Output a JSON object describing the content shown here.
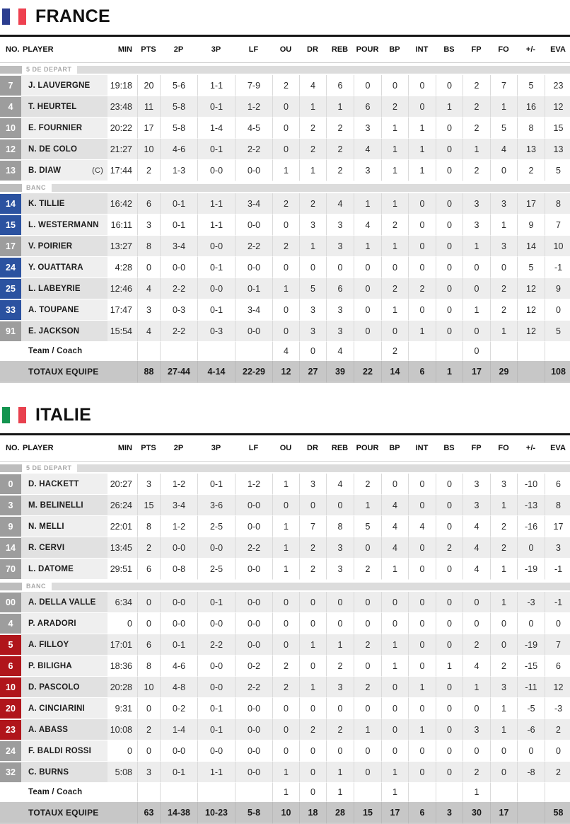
{
  "columns": [
    "NO.",
    "PLAYER",
    "MIN",
    "PTS",
    "2P",
    "3P",
    "LF",
    "OU",
    "DR",
    "REB",
    "POUR",
    "BP",
    "INT",
    "BS",
    "FP",
    "FO",
    "+/-",
    "EVA"
  ],
  "sections": {
    "starters": "5 DE DEPART",
    "bench": "BANC"
  },
  "labels": {
    "team_coach": "Team / Coach",
    "totals": "TOTAUX EQUIPE",
    "captain": "(C)"
  },
  "badge_inactive_color": "#9d9d9d",
  "teams": [
    {
      "name": "FRANCE",
      "accent": "#2b52a0",
      "flag_colors": [
        "#2b3d8f",
        "#ffffff",
        "#ee4150"
      ],
      "starters": [
        {
          "no": "7",
          "active": false,
          "name": "J. LAUVERGNE",
          "captain": false,
          "min": "19:18",
          "pts": "20",
          "p2": "5-6",
          "p3": "1-1",
          "lf": "7-9",
          "ou": "2",
          "dr": "4",
          "reb": "6",
          "pour": "0",
          "bp": "0",
          "int": "0",
          "bs": "0",
          "fp": "2",
          "fo": "7",
          "pm": "5",
          "eva": "23"
        },
        {
          "no": "4",
          "active": false,
          "name": "T. HEURTEL",
          "captain": false,
          "min": "23:48",
          "pts": "11",
          "p2": "5-8",
          "p3": "0-1",
          "lf": "1-2",
          "ou": "0",
          "dr": "1",
          "reb": "1",
          "pour": "6",
          "bp": "2",
          "int": "0",
          "bs": "1",
          "fp": "2",
          "fo": "1",
          "pm": "16",
          "eva": "12"
        },
        {
          "no": "10",
          "active": false,
          "name": "E. FOURNIER",
          "captain": false,
          "min": "20:22",
          "pts": "17",
          "p2": "5-8",
          "p3": "1-4",
          "lf": "4-5",
          "ou": "0",
          "dr": "2",
          "reb": "2",
          "pour": "3",
          "bp": "1",
          "int": "1",
          "bs": "0",
          "fp": "2",
          "fo": "5",
          "pm": "8",
          "eva": "15"
        },
        {
          "no": "12",
          "active": false,
          "name": "N. DE COLO",
          "captain": false,
          "min": "21:27",
          "pts": "10",
          "p2": "4-6",
          "p3": "0-1",
          "lf": "2-2",
          "ou": "0",
          "dr": "2",
          "reb": "2",
          "pour": "4",
          "bp": "1",
          "int": "1",
          "bs": "0",
          "fp": "1",
          "fo": "4",
          "pm": "13",
          "eva": "13"
        },
        {
          "no": "13",
          "active": false,
          "name": "B. DIAW",
          "captain": true,
          "min": "17:44",
          "pts": "2",
          "p2": "1-3",
          "p3": "0-0",
          "lf": "0-0",
          "ou": "1",
          "dr": "1",
          "reb": "2",
          "pour": "3",
          "bp": "1",
          "int": "1",
          "bs": "0",
          "fp": "2",
          "fo": "0",
          "pm": "2",
          "eva": "5"
        }
      ],
      "bench": [
        {
          "no": "14",
          "active": true,
          "name": "K. TILLIE",
          "captain": false,
          "min": "16:42",
          "pts": "6",
          "p2": "0-1",
          "p3": "1-1",
          "lf": "3-4",
          "ou": "2",
          "dr": "2",
          "reb": "4",
          "pour": "1",
          "bp": "1",
          "int": "0",
          "bs": "0",
          "fp": "3",
          "fo": "3",
          "pm": "17",
          "eva": "8"
        },
        {
          "no": "15",
          "active": true,
          "name": "L. WESTERMANN",
          "captain": false,
          "min": "16:11",
          "pts": "3",
          "p2": "0-1",
          "p3": "1-1",
          "lf": "0-0",
          "ou": "0",
          "dr": "3",
          "reb": "3",
          "pour": "4",
          "bp": "2",
          "int": "0",
          "bs": "0",
          "fp": "3",
          "fo": "1",
          "pm": "9",
          "eva": "7"
        },
        {
          "no": "17",
          "active": false,
          "name": "V. POIRIER",
          "captain": false,
          "min": "13:27",
          "pts": "8",
          "p2": "3-4",
          "p3": "0-0",
          "lf": "2-2",
          "ou": "2",
          "dr": "1",
          "reb": "3",
          "pour": "1",
          "bp": "1",
          "int": "0",
          "bs": "0",
          "fp": "1",
          "fo": "3",
          "pm": "14",
          "eva": "10"
        },
        {
          "no": "24",
          "active": true,
          "name": "Y. OUATTARA",
          "captain": false,
          "min": "4:28",
          "pts": "0",
          "p2": "0-0",
          "p3": "0-1",
          "lf": "0-0",
          "ou": "0",
          "dr": "0",
          "reb": "0",
          "pour": "0",
          "bp": "0",
          "int": "0",
          "bs": "0",
          "fp": "0",
          "fo": "0",
          "pm": "5",
          "eva": "-1"
        },
        {
          "no": "25",
          "active": true,
          "name": "L. LABEYRIE",
          "captain": false,
          "min": "12:46",
          "pts": "4",
          "p2": "2-2",
          "p3": "0-0",
          "lf": "0-1",
          "ou": "1",
          "dr": "5",
          "reb": "6",
          "pour": "0",
          "bp": "2",
          "int": "2",
          "bs": "0",
          "fp": "0",
          "fo": "2",
          "pm": "12",
          "eva": "9"
        },
        {
          "no": "33",
          "active": true,
          "name": "A. TOUPANE",
          "captain": false,
          "min": "17:47",
          "pts": "3",
          "p2": "0-3",
          "p3": "0-1",
          "lf": "3-4",
          "ou": "0",
          "dr": "3",
          "reb": "3",
          "pour": "0",
          "bp": "1",
          "int": "0",
          "bs": "0",
          "fp": "1",
          "fo": "2",
          "pm": "12",
          "eva": "0"
        },
        {
          "no": "91",
          "active": false,
          "name": "E. JACKSON",
          "captain": false,
          "min": "15:54",
          "pts": "4",
          "p2": "2-2",
          "p3": "0-3",
          "lf": "0-0",
          "ou": "0",
          "dr": "3",
          "reb": "3",
          "pour": "0",
          "bp": "0",
          "int": "1",
          "bs": "0",
          "fp": "0",
          "fo": "1",
          "pm": "12",
          "eva": "5"
        }
      ],
      "team_coach": {
        "ou": "4",
        "dr": "0",
        "reb": "4",
        "bp": "2",
        "fp": "0"
      },
      "totals": {
        "pts": "88",
        "p2": "27-44",
        "p3": "4-14",
        "lf": "22-29",
        "ou": "12",
        "dr": "27",
        "reb": "39",
        "pour": "22",
        "bp": "14",
        "int": "6",
        "bs": "1",
        "fp": "17",
        "fo": "29",
        "eva": "108"
      }
    },
    {
      "name": "ITALIE",
      "accent": "#b0151b",
      "flag_colors": [
        "#13944f",
        "#ffffff",
        "#e8414e"
      ],
      "starters": [
        {
          "no": "0",
          "active": false,
          "name": "D. HACKETT",
          "captain": false,
          "min": "20:27",
          "pts": "3",
          "p2": "1-2",
          "p3": "0-1",
          "lf": "1-2",
          "ou": "1",
          "dr": "3",
          "reb": "4",
          "pour": "2",
          "bp": "0",
          "int": "0",
          "bs": "0",
          "fp": "3",
          "fo": "3",
          "pm": "-10",
          "eva": "6"
        },
        {
          "no": "3",
          "active": false,
          "name": "M. BELINELLI",
          "captain": false,
          "min": "26:24",
          "pts": "15",
          "p2": "3-4",
          "p3": "3-6",
          "lf": "0-0",
          "ou": "0",
          "dr": "0",
          "reb": "0",
          "pour": "1",
          "bp": "4",
          "int": "0",
          "bs": "0",
          "fp": "3",
          "fo": "1",
          "pm": "-13",
          "eva": "8"
        },
        {
          "no": "9",
          "active": false,
          "name": "N. MELLI",
          "captain": false,
          "min": "22:01",
          "pts": "8",
          "p2": "1-2",
          "p3": "2-5",
          "lf": "0-0",
          "ou": "1",
          "dr": "7",
          "reb": "8",
          "pour": "5",
          "bp": "4",
          "int": "4",
          "bs": "0",
          "fp": "4",
          "fo": "2",
          "pm": "-16",
          "eva": "17"
        },
        {
          "no": "14",
          "active": false,
          "name": "R. CERVI",
          "captain": false,
          "min": "13:45",
          "pts": "2",
          "p2": "0-0",
          "p3": "0-0",
          "lf": "2-2",
          "ou": "1",
          "dr": "2",
          "reb": "3",
          "pour": "0",
          "bp": "4",
          "int": "0",
          "bs": "2",
          "fp": "4",
          "fo": "2",
          "pm": "0",
          "eva": "3"
        },
        {
          "no": "70",
          "active": false,
          "name": "L. DATOME",
          "captain": false,
          "min": "29:51",
          "pts": "6",
          "p2": "0-8",
          "p3": "2-5",
          "lf": "0-0",
          "ou": "1",
          "dr": "2",
          "reb": "3",
          "pour": "2",
          "bp": "1",
          "int": "0",
          "bs": "0",
          "fp": "4",
          "fo": "1",
          "pm": "-19",
          "eva": "-1"
        }
      ],
      "bench": [
        {
          "no": "00",
          "active": false,
          "name": "A. DELLA VALLE",
          "captain": false,
          "min": "6:34",
          "pts": "0",
          "p2": "0-0",
          "p3": "0-1",
          "lf": "0-0",
          "ou": "0",
          "dr": "0",
          "reb": "0",
          "pour": "0",
          "bp": "0",
          "int": "0",
          "bs": "0",
          "fp": "0",
          "fo": "1",
          "pm": "-3",
          "eva": "-1"
        },
        {
          "no": "4",
          "active": false,
          "name": "P. ARADORI",
          "captain": false,
          "min": "0",
          "pts": "0",
          "p2": "0-0",
          "p3": "0-0",
          "lf": "0-0",
          "ou": "0",
          "dr": "0",
          "reb": "0",
          "pour": "0",
          "bp": "0",
          "int": "0",
          "bs": "0",
          "fp": "0",
          "fo": "0",
          "pm": "0",
          "eva": "0"
        },
        {
          "no": "5",
          "active": true,
          "name": "A. FILLOY",
          "captain": false,
          "min": "17:01",
          "pts": "6",
          "p2": "0-1",
          "p3": "2-2",
          "lf": "0-0",
          "ou": "0",
          "dr": "1",
          "reb": "1",
          "pour": "2",
          "bp": "1",
          "int": "0",
          "bs": "0",
          "fp": "2",
          "fo": "0",
          "pm": "-19",
          "eva": "7"
        },
        {
          "no": "6",
          "active": true,
          "name": "P. BILIGHA",
          "captain": false,
          "min": "18:36",
          "pts": "8",
          "p2": "4-6",
          "p3": "0-0",
          "lf": "0-2",
          "ou": "2",
          "dr": "0",
          "reb": "2",
          "pour": "0",
          "bp": "1",
          "int": "0",
          "bs": "1",
          "fp": "4",
          "fo": "2",
          "pm": "-15",
          "eva": "6"
        },
        {
          "no": "10",
          "active": true,
          "name": "D. PASCOLO",
          "captain": false,
          "min": "20:28",
          "pts": "10",
          "p2": "4-8",
          "p3": "0-0",
          "lf": "2-2",
          "ou": "2",
          "dr": "1",
          "reb": "3",
          "pour": "2",
          "bp": "0",
          "int": "1",
          "bs": "0",
          "fp": "1",
          "fo": "3",
          "pm": "-11",
          "eva": "12"
        },
        {
          "no": "20",
          "active": true,
          "name": "A. CINCIARINI",
          "captain": false,
          "min": "9:31",
          "pts": "0",
          "p2": "0-2",
          "p3": "0-1",
          "lf": "0-0",
          "ou": "0",
          "dr": "0",
          "reb": "0",
          "pour": "0",
          "bp": "0",
          "int": "0",
          "bs": "0",
          "fp": "0",
          "fo": "1",
          "pm": "-5",
          "eva": "-3"
        },
        {
          "no": "23",
          "active": true,
          "name": "A. ABASS",
          "captain": false,
          "min": "10:08",
          "pts": "2",
          "p2": "1-4",
          "p3": "0-1",
          "lf": "0-0",
          "ou": "0",
          "dr": "2",
          "reb": "2",
          "pour": "1",
          "bp": "0",
          "int": "1",
          "bs": "0",
          "fp": "3",
          "fo": "1",
          "pm": "-6",
          "eva": "2"
        },
        {
          "no": "24",
          "active": false,
          "name": "F. BALDI ROSSI",
          "captain": false,
          "min": "0",
          "pts": "0",
          "p2": "0-0",
          "p3": "0-0",
          "lf": "0-0",
          "ou": "0",
          "dr": "0",
          "reb": "0",
          "pour": "0",
          "bp": "0",
          "int": "0",
          "bs": "0",
          "fp": "0",
          "fo": "0",
          "pm": "0",
          "eva": "0"
        },
        {
          "no": "32",
          "active": false,
          "name": "C. BURNS",
          "captain": false,
          "min": "5:08",
          "pts": "3",
          "p2": "0-1",
          "p3": "1-1",
          "lf": "0-0",
          "ou": "1",
          "dr": "0",
          "reb": "1",
          "pour": "0",
          "bp": "1",
          "int": "0",
          "bs": "0",
          "fp": "2",
          "fo": "0",
          "pm": "-8",
          "eva": "2"
        }
      ],
      "team_coach": {
        "ou": "1",
        "dr": "0",
        "reb": "1",
        "bp": "1",
        "fp": "1"
      },
      "totals": {
        "pts": "63",
        "p2": "14-38",
        "p3": "10-23",
        "lf": "5-8",
        "ou": "10",
        "dr": "18",
        "reb": "28",
        "pour": "15",
        "bp": "17",
        "int": "6",
        "bs": "3",
        "fp": "30",
        "fo": "17",
        "eva": "58"
      }
    }
  ]
}
